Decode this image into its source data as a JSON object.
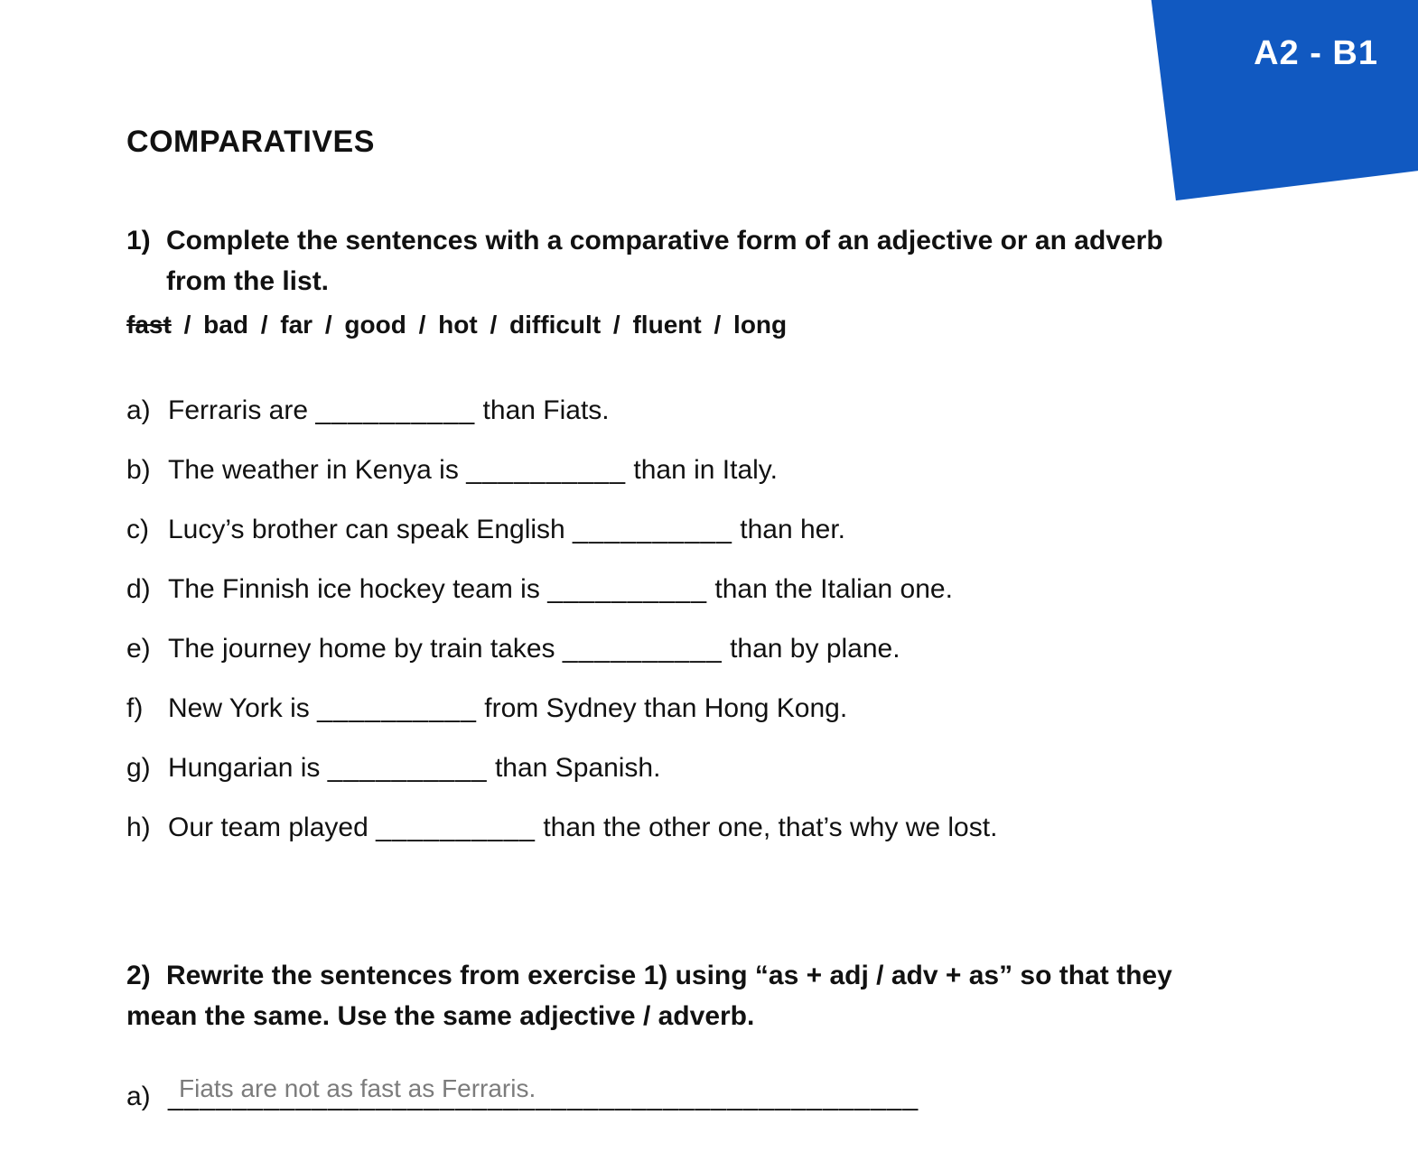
{
  "level_badge": "A2 - B1",
  "title_first": "C",
  "title_rest": "OMPARATIVES",
  "colors": {
    "badge_bg": "#1159c1",
    "badge_text": "#ffffff",
    "body_text": "#111111",
    "sample_answer": "#7c7c7c",
    "page_bg": "#ffffff"
  },
  "exercise1": {
    "number": "1)",
    "instruction_line1": "Complete the sentences with a comparative form of an adjective or an adverb",
    "instruction_line2": "from the list.",
    "wordbank": {
      "struck": "fast",
      "sep": "/",
      "words": [
        "bad",
        "far",
        "good",
        "hot",
        "difficult",
        "fluent",
        "long"
      ]
    },
    "blank": "__________",
    "items": [
      {
        "letter": "a)",
        "before": "Ferraris are ",
        "after": " than Fiats."
      },
      {
        "letter": "b)",
        "before": "The weather in Kenya is ",
        "after": " than in Italy."
      },
      {
        "letter": "c)",
        "before": "Lucy’s brother can speak English ",
        "after": " than her."
      },
      {
        "letter": "d)",
        "before": "The Finnish ice hockey team is ",
        "after": " than the Italian one."
      },
      {
        "letter": "e)",
        "before": "The journey home by train takes ",
        "after": " than by plane."
      },
      {
        "letter": "f)",
        "before": "New York is ",
        "after": " from Sydney than Hong Kong."
      },
      {
        "letter": "g)",
        "before": "Hungarian is ",
        "after": " than Spanish."
      },
      {
        "letter": "h)",
        "before": "Our team played ",
        "after": " than the other one, that’s why we lost."
      }
    ]
  },
  "exercise2": {
    "number": "2)",
    "instruction_line1": "Rewrite the sentences from exercise 1) using “as + adj / adv + as” so that they",
    "instruction_line2": "mean the same. Use the same adjective / adverb.",
    "item_letter": "a)",
    "underline": "_______________________________________________",
    "sample_answer": "Fiats are not as fast as Ferraris."
  }
}
